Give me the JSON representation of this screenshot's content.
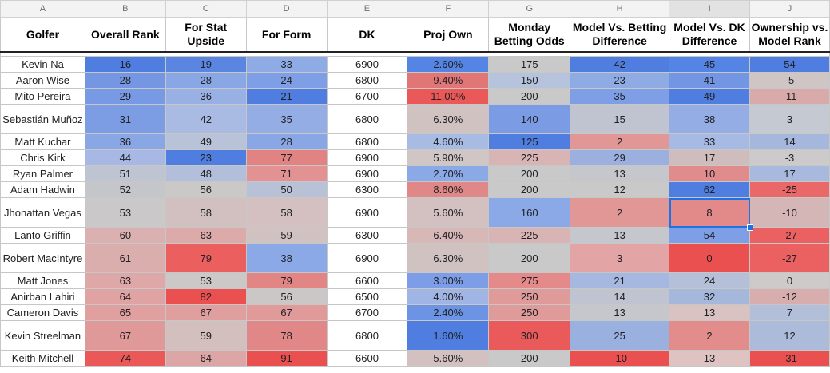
{
  "column_letters": [
    "A",
    "B",
    "C",
    "D",
    "E",
    "F",
    "G",
    "H",
    "I",
    "J"
  ],
  "headers": [
    "Golfer",
    "Overall Rank",
    "For Stat Upside",
    "For Form",
    "DK",
    "Proj Own",
    "Monday Betting Odds",
    "Model Vs. Betting Difference",
    "Model Vs. DK Difference",
    "Ownership vs. Model Rank"
  ],
  "rows": [
    {
      "golfer": "Kevin Na",
      "overall_rank": "16",
      "stat_upside": "19",
      "form": "33",
      "dk": "6900",
      "proj_own": "2.60%",
      "betting_odds": "175",
      "model_vs_betting": "42",
      "model_vs_dk": "45",
      "ownership_vs_model": "54"
    },
    {
      "golfer": "Aaron Wise",
      "overall_rank": "28",
      "stat_upside": "28",
      "form": "24",
      "dk": "6800",
      "proj_own": "9.40%",
      "betting_odds": "150",
      "model_vs_betting": "23",
      "model_vs_dk": "41",
      "ownership_vs_model": "-5"
    },
    {
      "golfer": "Mito Pereira",
      "overall_rank": "29",
      "stat_upside": "36",
      "form": "21",
      "dk": "6700",
      "proj_own": "11.00%",
      "betting_odds": "200",
      "model_vs_betting": "35",
      "model_vs_dk": "49",
      "ownership_vs_model": "-11"
    },
    {
      "golfer": "Sebastián Muñoz",
      "overall_rank": "31",
      "stat_upside": "42",
      "form": "35",
      "dk": "6800",
      "proj_own": "6.30%",
      "betting_odds": "140",
      "model_vs_betting": "15",
      "model_vs_dk": "38",
      "ownership_vs_model": "3"
    },
    {
      "golfer": "Matt Kuchar",
      "overall_rank": "36",
      "stat_upside": "49",
      "form": "28",
      "dk": "6800",
      "proj_own": "4.60%",
      "betting_odds": "125",
      "model_vs_betting": "2",
      "model_vs_dk": "33",
      "ownership_vs_model": "14"
    },
    {
      "golfer": "Chris Kirk",
      "overall_rank": "44",
      "stat_upside": "23",
      "form": "77",
      "dk": "6900",
      "proj_own": "5.90%",
      "betting_odds": "225",
      "model_vs_betting": "29",
      "model_vs_dk": "17",
      "ownership_vs_model": "-3"
    },
    {
      "golfer": "Ryan Palmer",
      "overall_rank": "51",
      "stat_upside": "48",
      "form": "71",
      "dk": "6900",
      "proj_own": "2.70%",
      "betting_odds": "200",
      "model_vs_betting": "13",
      "model_vs_dk": "10",
      "ownership_vs_model": "17"
    },
    {
      "golfer": "Adam Hadwin",
      "overall_rank": "52",
      "stat_upside": "56",
      "form": "50",
      "dk": "6300",
      "proj_own": "8.60%",
      "betting_odds": "200",
      "model_vs_betting": "12",
      "model_vs_dk": "62",
      "ownership_vs_model": "-25"
    },
    {
      "golfer": "Jhonattan Vegas",
      "overall_rank": "53",
      "stat_upside": "58",
      "form": "58",
      "dk": "6900",
      "proj_own": "5.60%",
      "betting_odds": "160",
      "model_vs_betting": "2",
      "model_vs_dk": "8",
      "ownership_vs_model": "-10"
    },
    {
      "golfer": "Lanto Griffin",
      "overall_rank": "60",
      "stat_upside": "63",
      "form": "59",
      "dk": "6300",
      "proj_own": "6.40%",
      "betting_odds": "225",
      "model_vs_betting": "13",
      "model_vs_dk": "54",
      "ownership_vs_model": "-27"
    },
    {
      "golfer": "Robert MacIntyre",
      "overall_rank": "61",
      "stat_upside": "79",
      "form": "38",
      "dk": "6900",
      "proj_own": "6.30%",
      "betting_odds": "200",
      "model_vs_betting": "3",
      "model_vs_dk": "0",
      "ownership_vs_model": "-27"
    },
    {
      "golfer": "Matt Jones",
      "overall_rank": "63",
      "stat_upside": "53",
      "form": "79",
      "dk": "6600",
      "proj_own": "3.00%",
      "betting_odds": "275",
      "model_vs_betting": "21",
      "model_vs_dk": "24",
      "ownership_vs_model": "0"
    },
    {
      "golfer": "Anirban Lahiri",
      "overall_rank": "64",
      "stat_upside": "82",
      "form": "56",
      "dk": "6500",
      "proj_own": "4.00%",
      "betting_odds": "250",
      "model_vs_betting": "14",
      "model_vs_dk": "32",
      "ownership_vs_model": "-12"
    },
    {
      "golfer": "Cameron Davis",
      "overall_rank": "65",
      "stat_upside": "67",
      "form": "67",
      "dk": "6700",
      "proj_own": "2.40%",
      "betting_odds": "250",
      "model_vs_betting": "13",
      "model_vs_dk": "13",
      "ownership_vs_model": "7"
    },
    {
      "golfer": "Kevin Streelman",
      "overall_rank": "67",
      "stat_upside": "59",
      "form": "78",
      "dk": "6800",
      "proj_own": "1.60%",
      "betting_odds": "300",
      "model_vs_betting": "25",
      "model_vs_dk": "2",
      "ownership_vs_model": "12"
    },
    {
      "golfer": "Keith Mitchell",
      "overall_rank": "74",
      "stat_upside": "64",
      "form": "91",
      "dk": "6600",
      "proj_own": "5.60%",
      "betting_odds": "200",
      "model_vs_betting": "-10",
      "model_vs_dk": "13",
      "ownership_vs_model": "-31"
    }
  ],
  "cell_colors": [
    [
      "#ffffff",
      "#4f7ee0",
      "#5a86e2",
      "#8eabe6",
      "#ffffff",
      "#5585e4",
      "#c9c9c9",
      "#4f7ee0",
      "#5585e4",
      "#4f7ee0"
    ],
    [
      "#ffffff",
      "#7496e3",
      "#8aa7e5",
      "#7e9ee6",
      "#ffffff",
      "#e07676",
      "#b6c3dc",
      "#8fabe4",
      "#7296e3",
      "#cfc5c5"
    ],
    [
      "#ffffff",
      "#7899e3",
      "#98b0e3",
      "#4f7ee0",
      "#ffffff",
      "#eb5858",
      "#c9c9c9",
      "#7e9ee6",
      "#4f7ee0",
      "#d9aaaa"
    ],
    [
      "#ffffff",
      "#7c9de4",
      "#a9bbe2",
      "#94ade5",
      "#ffffff",
      "#d1c2c2",
      "#7b9ce5",
      "#bfc4d0",
      "#94ade5",
      "#c5c9d1"
    ],
    [
      "#ffffff",
      "#8aa7e5",
      "#b8c2d8",
      "#8aa7e5",
      "#ffffff",
      "#a7bbe3",
      "#4f7ee0",
      "#e29797",
      "#a7bae3",
      "#a6b7dd"
    ],
    [
      "#ffffff",
      "#a6b8e3",
      "#4f7ee0",
      "#e28383",
      "#ffffff",
      "#d0c6c6",
      "#d8b4b4",
      "#9bb0de",
      "#cfbcbc",
      "#cccaca"
    ],
    [
      "#ffffff",
      "#bec4d2",
      "#b3bfda",
      "#e29292",
      "#ffffff",
      "#8ba9e6",
      "#c9c9c9",
      "#c5c7cc",
      "#e08c8c",
      "#a8b9dd"
    ],
    [
      "#ffffff",
      "#c4c6ca",
      "#cbc8c8",
      "#b8c1d6",
      "#ffffff",
      "#e08888",
      "#c9c9c9",
      "#c9c9c9",
      "#4f7ee0",
      "#eb6868"
    ],
    [
      "#ffffff",
      "#cac8c8",
      "#d2c0c0",
      "#d4c0c0",
      "#ffffff",
      "#d3c0c0",
      "#8ba9e6",
      "#e29797",
      "#e28a8a",
      "#d5b6b6"
    ],
    [
      "#ffffff",
      "#dbb0b0",
      "#ddaaaa",
      "#d1c2c2",
      "#ffffff",
      "#d8b7b7",
      "#d8b4b4",
      "#c5c7cc",
      "#7e9ee6",
      "#eb6060"
    ],
    [
      "#ffffff",
      "#dbaeae",
      "#eb5f5f",
      "#8ba9e6",
      "#ffffff",
      "#d1c2c2",
      "#c9c9c9",
      "#e2a4a4",
      "#eb5050",
      "#eb6060"
    ],
    [
      "#ffffff",
      "#dea8a8",
      "#ccc8c8",
      "#e28585",
      "#ffffff",
      "#7d9ee6",
      "#e58a8a",
      "#a6b8e0",
      "#b5c0d8",
      "#cecaca"
    ],
    [
      "#ffffff",
      "#e0a3a3",
      "#eb5050",
      "#ccc7c7",
      "#ffffff",
      "#a0b5e4",
      "#df9a9a",
      "#bfc4d0",
      "#a6b7dc",
      "#d8adad"
    ],
    [
      "#ffffff",
      "#e0a0a0",
      "#e09f9f",
      "#e09a9a",
      "#ffffff",
      "#6d93e5",
      "#df9a9a",
      "#c5c7cc",
      "#d8c2c2",
      "#b3bfd8"
    ],
    [
      "#ffffff",
      "#e09999",
      "#d4bfbf",
      "#e28787",
      "#ffffff",
      "#4f7ee0",
      "#eb5a5a",
      "#9ab0de",
      "#e28c8c",
      "#acbbd9"
    ],
    [
      "#ffffff",
      "#eb5858",
      "#dca6a6",
      "#eb5050",
      "#ffffff",
      "#d3c0c0",
      "#c9c9c9",
      "#eb5050",
      "#dfc3c3",
      "#eb5050"
    ]
  ],
  "selected_cell": "I9"
}
